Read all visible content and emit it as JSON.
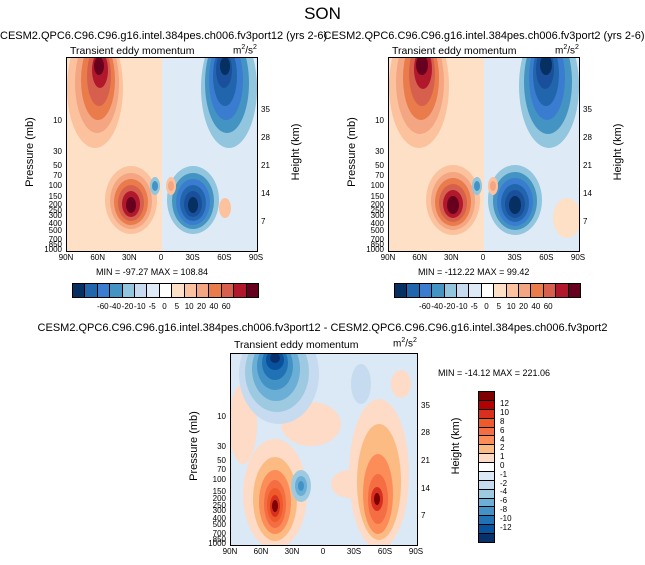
{
  "title": "SON",
  "units_base": "m",
  "units_sup": "2",
  "units_tail": "/s",
  "units_sup2": "2",
  "panels": [
    {
      "title": "CESM2.QPC6.C96.C96.g16.intel.384pes.ch006.fv3port12 (yrs 2-6)",
      "subtitle": "Transient eddy momentum",
      "minmax": "MIN = -97.27  MAX = 108.84"
    },
    {
      "title": "CESM2.QPC6.C96.C96.g16.intel.384pes.ch006.fv3port2 (yrs 2-6)",
      "subtitle": "Transient eddy momentum",
      "minmax": "MIN = -112.22  MAX = 99.42"
    },
    {
      "title": "CESM2.QPC6.C96.C96.g16.intel.384pes.ch006.fv3port12 - CESM2.QPC6.C96.C96.g16.intel.384pes.ch006.fv3port2",
      "subtitle": "Transient eddy momentum",
      "minmax": "MIN = -14.12  MAX = 221.06"
    }
  ],
  "axes": {
    "ylabel": "Pressure (mb)",
    "height_label": "Height (km)",
    "pressure_ticks": [
      "10",
      "30",
      "50",
      "70",
      "100",
      "150",
      "200",
      "250",
      "300",
      "400",
      "500",
      "700",
      "850",
      "1000"
    ],
    "height_ticks": [
      "35",
      "28",
      "21",
      "14",
      "7"
    ],
    "lat_ticks": [
      "90N",
      "60N",
      "30N",
      "0",
      "30S",
      "60S",
      "90S"
    ]
  },
  "colorbar_top": {
    "labels": [
      "-60",
      "-40",
      "-20",
      "-10",
      "-5",
      "0",
      "5",
      "10",
      "20",
      "40",
      "60"
    ],
    "colors": [
      "#053061",
      "#2166ac",
      "#3a7cd0",
      "#4393c3",
      "#92c5de",
      "#c6dbef",
      "#deebf7",
      "#ffffff",
      "#fde0c5",
      "#fcc29e",
      "#f4a582",
      "#ea7b4b",
      "#d6604d",
      "#b2182b",
      "#67001f"
    ]
  },
  "colorbar_diff": {
    "labels": [
      "12",
      "10",
      "8",
      "6",
      "4",
      "2",
      "1",
      "0",
      "-1",
      "-2",
      "-4",
      "-6",
      "-8",
      "-10",
      "-12"
    ],
    "colors": [
      "#7f0000",
      "#b30000",
      "#d7301f",
      "#ef5a2a",
      "#f46d43",
      "#fc8d59",
      "#fdbb84",
      "#fddbc7",
      "#ffffff",
      "#dbe9f6",
      "#c6dbef",
      "#9ecae1",
      "#6baed6",
      "#4292c6",
      "#2171b5",
      "#08519c",
      "#08306b"
    ]
  },
  "chart_data": [
    {
      "type": "heatmap",
      "title": "CESM2.QPC6.C96.C96.g16.intel.384pes.ch006.fv3port12 (yrs 2-6)",
      "subtitle": "Transient eddy momentum",
      "xlabel": "",
      "ylabel": "Pressure (mb)",
      "y2label": "Height (km)",
      "x": [
        "90N",
        "60N",
        "30N",
        "0",
        "30S",
        "60S",
        "90S"
      ],
      "y_pressure_ticks": [
        10,
        30,
        50,
        70,
        100,
        150,
        200,
        250,
        300,
        400,
        500,
        700,
        850,
        1000
      ],
      "y_height_ticks": [
        35,
        28,
        21,
        14,
        7
      ],
      "min": -97.27,
      "max": 108.84,
      "contour_levels": [
        -60,
        -40,
        -20,
        -10,
        -5,
        0,
        5,
        10,
        20,
        40,
        60
      ],
      "features": [
        {
          "lat": 58,
          "p": 10,
          "sign": "+"
        },
        {
          "lat": 32,
          "p": 280,
          "sign": "+"
        },
        {
          "lat": -32,
          "p": 280,
          "sign": "-"
        },
        {
          "lat": -58,
          "p": 10,
          "sign": "-"
        }
      ]
    },
    {
      "type": "heatmap",
      "title": "CESM2.QPC6.C96.C96.g16.intel.384pes.ch006.fv3port2 (yrs 2-6)",
      "subtitle": "Transient eddy momentum",
      "xlabel": "",
      "ylabel": "Pressure (mb)",
      "y2label": "Height (km)",
      "x": [
        "90N",
        "60N",
        "30N",
        "0",
        "30S",
        "60S",
        "90S"
      ],
      "y_pressure_ticks": [
        10,
        30,
        50,
        70,
        100,
        150,
        200,
        250,
        300,
        400,
        500,
        700,
        850,
        1000
      ],
      "y_height_ticks": [
        35,
        28,
        21,
        14,
        7
      ],
      "min": -112.22,
      "max": 99.42,
      "contour_levels": [
        -60,
        -40,
        -20,
        -10,
        -5,
        0,
        5,
        10,
        20,
        40,
        60
      ],
      "features": [
        {
          "lat": 58,
          "p": 10,
          "sign": "+"
        },
        {
          "lat": 32,
          "p": 280,
          "sign": "+"
        },
        {
          "lat": -32,
          "p": 280,
          "sign": "-"
        },
        {
          "lat": -58,
          "p": 10,
          "sign": "-"
        }
      ]
    },
    {
      "type": "heatmap",
      "title": "CESM2.QPC6.C96.C96.g16.intel.384pes.ch006.fv3port12 - CESM2.QPC6.C96.C96.g16.intel.384pes.ch006.fv3port2",
      "subtitle": "Transient eddy momentum",
      "xlabel": "",
      "ylabel": "Pressure (mb)",
      "y2label": "Height (km)",
      "x": [
        "90N",
        "60N",
        "30N",
        "0",
        "30S",
        "60S",
        "90S"
      ],
      "y_pressure_ticks": [
        10,
        30,
        50,
        70,
        100,
        150,
        200,
        250,
        300,
        400,
        500,
        700,
        850,
        1000
      ],
      "y_height_ticks": [
        35,
        28,
        21,
        14,
        7
      ],
      "min": -14.12,
      "max": 221.06,
      "contour_levels": [
        -12,
        -10,
        -8,
        -6,
        -4,
        -2,
        -1,
        0,
        1,
        2,
        4,
        6,
        8,
        10,
        12
      ],
      "features": [
        {
          "lat": 50,
          "p": 15,
          "sign": "-"
        },
        {
          "lat": 45,
          "p": 300,
          "sign": "+"
        },
        {
          "lat": 15,
          "p": 220,
          "sign": "-"
        },
        {
          "lat": -52,
          "p": 260,
          "sign": "+"
        }
      ]
    }
  ]
}
